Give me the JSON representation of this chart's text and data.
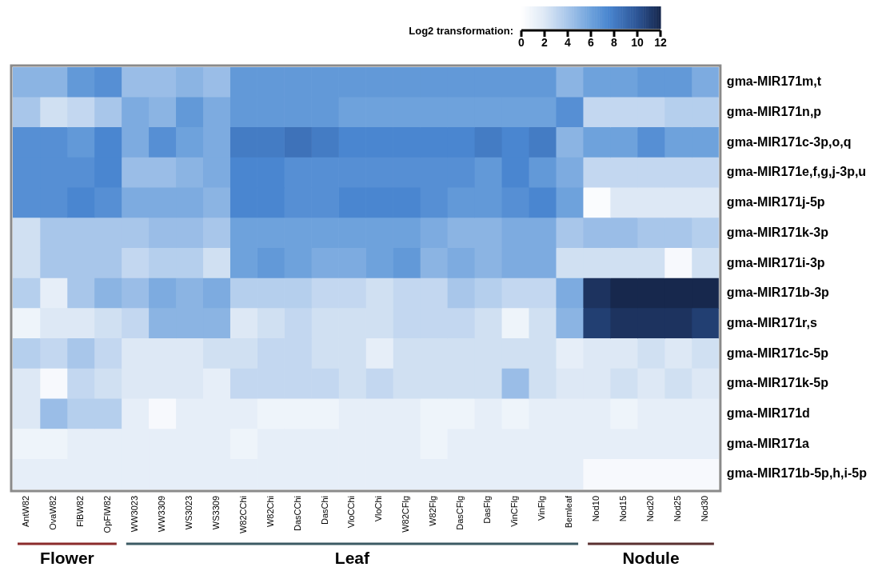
{
  "chart_data": {
    "type": "heatmap",
    "categories": [
      "AntW82",
      "OvaW82",
      "FlBW82",
      "OpFlW82",
      "WW3023",
      "WW3309",
      "WS3023",
      "WS3309",
      "W82CChi",
      "W82Chi",
      "DasCChi",
      "DasChi",
      "VloCChi",
      "VloChi",
      "W82CFlg",
      "W82Flg",
      "DasCFlg",
      "DasFlg",
      "VinCFlg",
      "VinFlg",
      "Bemleaf",
      "Nod10",
      "Nod15",
      "Nod20",
      "Nod25",
      "Nod30"
    ],
    "y_categories": [
      "gma-MIR171m,t",
      "gma-MIR171n,p",
      "gma-MIR171c-3p,o,q",
      "gma-MIR171e,f,g,j-3p,u",
      "gma-MIR171j-5p",
      "gma-MIR171k-3p",
      "gma-MIR171i-3p",
      "gma-MIR171b-3p",
      "gma-MIR171r,s",
      "gma-MIR171c-5p",
      "gma-MIR171k-5p",
      "gma-MIR171d",
      "gma-MIR171a",
      "gma-MIR171b-5p,h,i-5p"
    ],
    "cells": [
      [
        5,
        5,
        6.5,
        7,
        4.5,
        4.5,
        5,
        4.5,
        6.5,
        6.5,
        6.5,
        6.5,
        6.5,
        6.5,
        6.5,
        6.5,
        6.5,
        6.5,
        6.5,
        6.5,
        5,
        6,
        6,
        6.5,
        6.5,
        5.5
      ],
      [
        4,
        2.5,
        3,
        4,
        5.5,
        5,
        6.5,
        5.5,
        6.5,
        6.5,
        6.5,
        6.5,
        6,
        6,
        6,
        6,
        6,
        6,
        6,
        6,
        7,
        3,
        3,
        3,
        3.5,
        3.5
      ],
      [
        7,
        7,
        6.5,
        7.5,
        5.5,
        7,
        6,
        5.5,
        8,
        8,
        8.5,
        8,
        7.5,
        7.5,
        7.5,
        7.5,
        7.5,
        8,
        7.5,
        8,
        5,
        6,
        6,
        7,
        6,
        6
      ],
      [
        7,
        7,
        7,
        7.5,
        4.5,
        4.5,
        5,
        5.5,
        7.5,
        7.5,
        7,
        7,
        7,
        7,
        7,
        7,
        7,
        6.5,
        7.5,
        6.5,
        5.5,
        3,
        3,
        3,
        3,
        3
      ],
      [
        7,
        7,
        7.5,
        7,
        5.5,
        5.5,
        5.5,
        5,
        7.5,
        7.5,
        7,
        7,
        7.5,
        7.5,
        7.5,
        7,
        6.5,
        6.5,
        7,
        7.5,
        6,
        0.3,
        2,
        2,
        2,
        2
      ],
      [
        2.5,
        4,
        4,
        4,
        4,
        4.5,
        4.5,
        4,
        6,
        6,
        6,
        6,
        6,
        6,
        6,
        5.5,
        5,
        5,
        5.5,
        5.5,
        4,
        4.5,
        4.5,
        4,
        4,
        3.5
      ],
      [
        2.5,
        4,
        4,
        4,
        3,
        3.5,
        3.5,
        2.5,
        6,
        6.5,
        6,
        5.5,
        5.5,
        6,
        6.5,
        5,
        5.5,
        5,
        5.5,
        5.5,
        2.5,
        2.5,
        2.5,
        2.5,
        0.5,
        2.5
      ],
      [
        3.5,
        1.5,
        4,
        5,
        4.5,
        5.5,
        5,
        5.5,
        3.5,
        3.5,
        3.5,
        3,
        3,
        2.5,
        3,
        3,
        4,
        3.5,
        3,
        3,
        5.5,
        11.5,
        12,
        12,
        12,
        12
      ],
      [
        1,
        2,
        2,
        2.5,
        3,
        5,
        5,
        5,
        2,
        2.5,
        3,
        2.5,
        2.5,
        2.5,
        3,
        3,
        3,
        2.5,
        1,
        2.5,
        5,
        11,
        11.5,
        11.5,
        11.5,
        11
      ],
      [
        3.5,
        3,
        4,
        3,
        2,
        2,
        2,
        2.5,
        2.5,
        3,
        3,
        2.5,
        2.5,
        1.5,
        2.5,
        2.5,
        2.5,
        2.5,
        2.5,
        2.5,
        1.5,
        2,
        2,
        2.5,
        2,
        2.5
      ],
      [
        2,
        0.5,
        3,
        2.5,
        2,
        2,
        2,
        1.5,
        3,
        3,
        3,
        3,
        2.5,
        3,
        2.5,
        2.5,
        2.5,
        2.5,
        4.5,
        2.5,
        2,
        2,
        2.5,
        2,
        2.5,
        2
      ],
      [
        2,
        4.5,
        3.5,
        3.5,
        1.5,
        0.5,
        1.5,
        1.5,
        1.5,
        1,
        1,
        1,
        1.5,
        1.5,
        1.5,
        1,
        1,
        1.5,
        1,
        1.5,
        1.5,
        1.5,
        1,
        1.5,
        1.5,
        1.5
      ],
      [
        1,
        1,
        1.5,
        1.5,
        1.5,
        1.5,
        1.5,
        1.5,
        1,
        1.5,
        1.5,
        1.5,
        1.5,
        1.5,
        1.5,
        1,
        1.5,
        1.5,
        1.5,
        1.5,
        1.5,
        1.5,
        1.5,
        1.5,
        1.5,
        1.5
      ],
      [
        1.5,
        1.5,
        1.5,
        1.5,
        1.5,
        1.5,
        1.5,
        1.5,
        1.5,
        1.5,
        1.5,
        1.5,
        1.5,
        1.5,
        1.5,
        1.5,
        1.5,
        1.5,
        1.5,
        1.5,
        1.5,
        0.5,
        0.5,
        0.5,
        0.5,
        0.5
      ]
    ],
    "clabel": "Log2 transformation:",
    "clim": [
      0,
      12
    ],
    "cticks": [
      0,
      2,
      4,
      6,
      8,
      10,
      12
    ],
    "annotations": [
      "Flower",
      "Leaf",
      "Nodule"
    ]
  }
}
